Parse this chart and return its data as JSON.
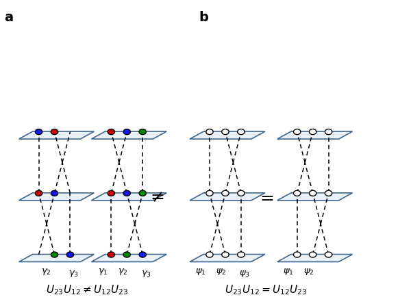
{
  "bg_color": "#ffffff",
  "colors": {
    "blue": "#1515ee",
    "red": "#cc0000",
    "green": "#008800"
  },
  "plate_fill": "#e8f0f8",
  "plate_edge": "#446688",
  "plate_lw": 1.2,
  "particle_lw": 1.0,
  "line_lw": 1.1,
  "label_a": "a",
  "label_b": "b",
  "eq_left": "$U_{23}U_{12} \\neq U_{12}U_{23}$",
  "eq_right": "$U_{23}U_{12} = U_{12}U_{23}$"
}
